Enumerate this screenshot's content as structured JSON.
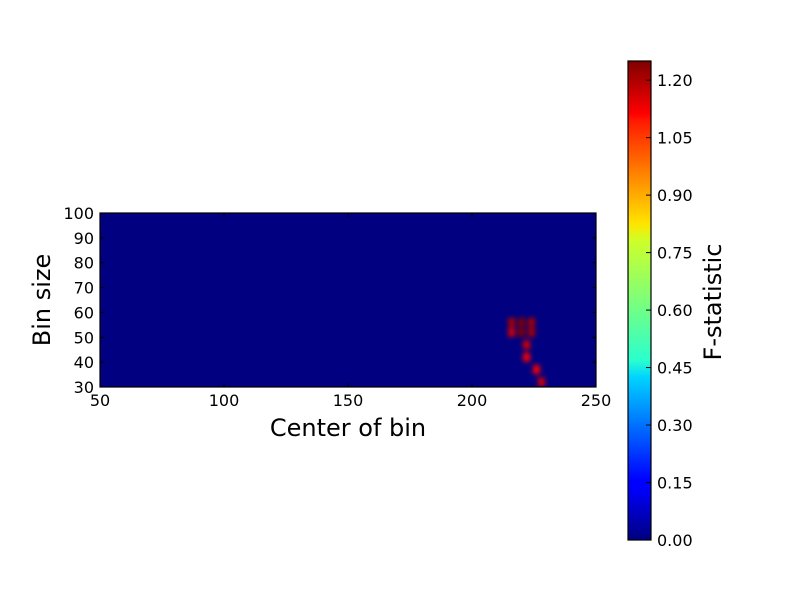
{
  "chart_data": {
    "type": "heatmap",
    "title": "",
    "xlabel": "Center of bin",
    "ylabel": "Bin size",
    "xlim": [
      50,
      250
    ],
    "ylim": [
      30,
      100
    ],
    "xticks": [
      "50",
      "100",
      "150",
      "200",
      "250"
    ],
    "yticks": [
      "30",
      "40",
      "50",
      "60",
      "70",
      "80",
      "90",
      "100"
    ],
    "colormap": "jet",
    "background_value": 0.0,
    "hotspots": [
      {
        "x": 216.0,
        "y": 56.0,
        "value": 1.2
      },
      {
        "x": 220.0,
        "y": 56.0,
        "value": 1.25
      },
      {
        "x": 224.0,
        "y": 56.0,
        "value": 1.2
      },
      {
        "x": 216.0,
        "y": 52.0,
        "value": 1.15
      },
      {
        "x": 220.0,
        "y": 52.0,
        "value": 1.25
      },
      {
        "x": 224.0,
        "y": 52.0,
        "value": 1.2
      },
      {
        "x": 222.0,
        "y": 47.0,
        "value": 1.15
      },
      {
        "x": 222.0,
        "y": 42.0,
        "value": 1.1
      },
      {
        "x": 226.0,
        "y": 37.0,
        "value": 1.1
      },
      {
        "x": 228.0,
        "y": 32.0,
        "value": 1.15
      }
    ],
    "colorbar": {
      "label": "F-statistic",
      "range": [
        0.0,
        1.25
      ],
      "ticks": [
        "0.00",
        "0.15",
        "0.30",
        "0.45",
        "0.60",
        "0.75",
        "0.90",
        "1.05",
        "1.20"
      ]
    }
  }
}
